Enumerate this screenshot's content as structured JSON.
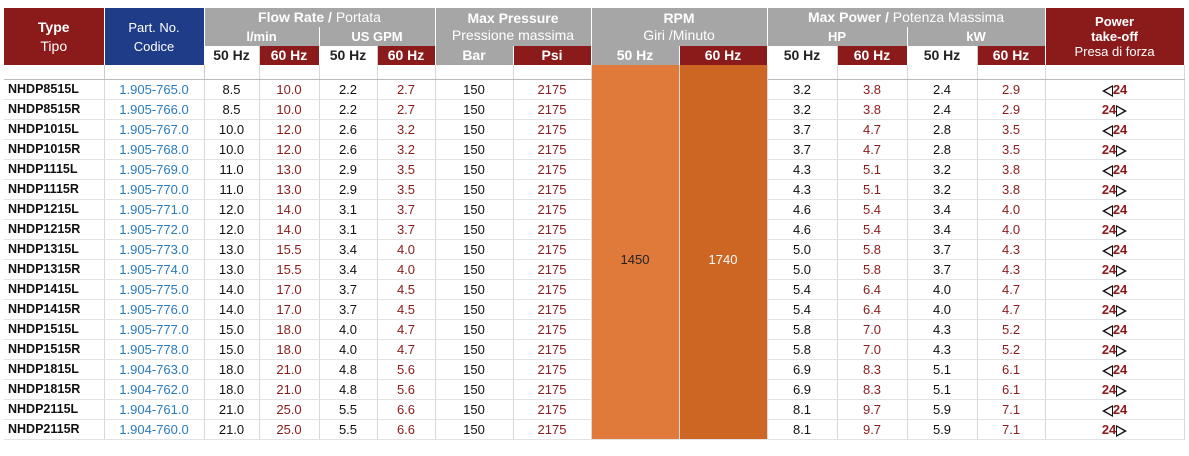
{
  "header": {
    "type": {
      "title": "Type",
      "sub": "Tipo"
    },
    "part": {
      "title": "Part. No.",
      "sub": "Codice"
    },
    "flow": {
      "title": "Flow Rate /",
      "sub": "Portata",
      "lmin": "l/min",
      "usgpm": "US GPM"
    },
    "pressure": {
      "title": "Max Pressure",
      "sub": "Pressione massima",
      "bar": "Bar",
      "psi": "Psi"
    },
    "rpm": {
      "title": "RPM",
      "sub": "Giri /Minuto"
    },
    "power": {
      "title": "Max Power /",
      "sub": "Potenza Massima",
      "hp": "HP",
      "kw": "kW"
    },
    "pto": {
      "title1": "Power",
      "title2": "take-off",
      "sub": "Presa di forza"
    },
    "hz50": "50 Hz",
    "hz60": "60 Hz"
  },
  "rpm_values": {
    "hz50": "1450",
    "hz60": "1740"
  },
  "rows": [
    {
      "type": "NHDP8515L",
      "part": "1.905-765.0",
      "l50": "8.5",
      "l60": "10.0",
      "g50": "2.2",
      "g60": "2.7",
      "bar": "150",
      "psi": "2175",
      "hp50": "3.2",
      "hp60": "3.8",
      "kw50": "2.4",
      "kw60": "2.9",
      "pto": "24",
      "dir": "L"
    },
    {
      "type": "NHDP8515R",
      "part": "1.905-766.0",
      "l50": "8.5",
      "l60": "10.0",
      "g50": "2.2",
      "g60": "2.7",
      "bar": "150",
      "psi": "2175",
      "hp50": "3.2",
      "hp60": "3.8",
      "kw50": "2.4",
      "kw60": "2.9",
      "pto": "24",
      "dir": "R"
    },
    {
      "type": "NHDP1015L",
      "part": "1.905-767.0",
      "l50": "10.0",
      "l60": "12.0",
      "g50": "2.6",
      "g60": "3.2",
      "bar": "150",
      "psi": "2175",
      "hp50": "3.7",
      "hp60": "4.7",
      "kw50": "2.8",
      "kw60": "3.5",
      "pto": "24",
      "dir": "L"
    },
    {
      "type": "NHDP1015R",
      "part": "1.905-768.0",
      "l50": "10.0",
      "l60": "12.0",
      "g50": "2.6",
      "g60": "3.2",
      "bar": "150",
      "psi": "2175",
      "hp50": "3.7",
      "hp60": "4.7",
      "kw50": "2.8",
      "kw60": "3.5",
      "pto": "24",
      "dir": "R"
    },
    {
      "type": "NHDP1115L",
      "part": "1.905-769.0",
      "l50": "11.0",
      "l60": "13.0",
      "g50": "2.9",
      "g60": "3.5",
      "bar": "150",
      "psi": "2175",
      "hp50": "4.3",
      "hp60": "5.1",
      "kw50": "3.2",
      "kw60": "3.8",
      "pto": "24",
      "dir": "L"
    },
    {
      "type": "NHDP1115R",
      "part": "1.905-770.0",
      "l50": "11.0",
      "l60": "13.0",
      "g50": "2.9",
      "g60": "3.5",
      "bar": "150",
      "psi": "2175",
      "hp50": "4.3",
      "hp60": "5.1",
      "kw50": "3.2",
      "kw60": "3.8",
      "pto": "24",
      "dir": "R"
    },
    {
      "type": "NHDP1215L",
      "part": "1.905-771.0",
      "l50": "12.0",
      "l60": "14.0",
      "g50": "3.1",
      "g60": "3.7",
      "bar": "150",
      "psi": "2175",
      "hp50": "4.6",
      "hp60": "5.4",
      "kw50": "3.4",
      "kw60": "4.0",
      "pto": "24",
      "dir": "L"
    },
    {
      "type": "NHDP1215R",
      "part": "1.905-772.0",
      "l50": "12.0",
      "l60": "14.0",
      "g50": "3.1",
      "g60": "3.7",
      "bar": "150",
      "psi": "2175",
      "hp50": "4.6",
      "hp60": "5.4",
      "kw50": "3.4",
      "kw60": "4.0",
      "pto": "24",
      "dir": "R"
    },
    {
      "type": "NHDP1315L",
      "part": "1.905-773.0",
      "l50": "13.0",
      "l60": "15.5",
      "g50": "3.4",
      "g60": "4.0",
      "bar": "150",
      "psi": "2175",
      "hp50": "5.0",
      "hp60": "5.8",
      "kw50": "3.7",
      "kw60": "4.3",
      "pto": "24",
      "dir": "L"
    },
    {
      "type": "NHDP1315R",
      "part": "1.905-774.0",
      "l50": "13.0",
      "l60": "15.5",
      "g50": "3.4",
      "g60": "4.0",
      "bar": "150",
      "psi": "2175",
      "hp50": "5.0",
      "hp60": "5.8",
      "kw50": "3.7",
      "kw60": "4.3",
      "pto": "24",
      "dir": "R"
    },
    {
      "type": "NHDP1415L",
      "part": "1.905-775.0",
      "l50": "14.0",
      "l60": "17.0",
      "g50": "3.7",
      "g60": "4.5",
      "bar": "150",
      "psi": "2175",
      "hp50": "5.4",
      "hp60": "6.4",
      "kw50": "4.0",
      "kw60": "4.7",
      "pto": "24",
      "dir": "L"
    },
    {
      "type": "NHDP1415R",
      "part": "1.905-776.0",
      "l50": "14.0",
      "l60": "17.0",
      "g50": "3.7",
      "g60": "4.5",
      "bar": "150",
      "psi": "2175",
      "hp50": "5.4",
      "hp60": "6.4",
      "kw50": "4.0",
      "kw60": "4.7",
      "pto": "24",
      "dir": "R"
    },
    {
      "type": "NHDP1515L",
      "part": "1.905-777.0",
      "l50": "15.0",
      "l60": "18.0",
      "g50": "4.0",
      "g60": "4.7",
      "bar": "150",
      "psi": "2175",
      "hp50": "5.8",
      "hp60": "7.0",
      "kw50": "4.3",
      "kw60": "5.2",
      "pto": "24",
      "dir": "L"
    },
    {
      "type": "NHDP1515R",
      "part": "1.905-778.0",
      "l50": "15.0",
      "l60": "18.0",
      "g50": "4.0",
      "g60": "4.7",
      "bar": "150",
      "psi": "2175",
      "hp50": "5.8",
      "hp60": "7.0",
      "kw50": "4.3",
      "kw60": "5.2",
      "pto": "24",
      "dir": "R"
    },
    {
      "type": "NHDP1815L",
      "part": "1.904-763.0",
      "l50": "18.0",
      "l60": "21.0",
      "g50": "4.8",
      "g60": "5.6",
      "bar": "150",
      "psi": "2175",
      "hp50": "6.9",
      "hp60": "8.3",
      "kw50": "5.1",
      "kw60": "6.1",
      "pto": "24",
      "dir": "L"
    },
    {
      "type": "NHDP1815R",
      "part": "1.904-762.0",
      "l50": "18.0",
      "l60": "21.0",
      "g50": "4.8",
      "g60": "5.6",
      "bar": "150",
      "psi": "2175",
      "hp50": "6.9",
      "hp60": "8.3",
      "kw50": "5.1",
      "kw60": "6.1",
      "pto": "24",
      "dir": "R"
    },
    {
      "type": "NHDP2115L",
      "part": "1.904-761.0",
      "l50": "21.0",
      "l60": "25.0",
      "g50": "5.5",
      "g60": "6.6",
      "bar": "150",
      "psi": "2175",
      "hp50": "8.1",
      "hp60": "9.7",
      "kw50": "5.9",
      "kw60": "7.1",
      "pto": "24",
      "dir": "L"
    },
    {
      "type": "NHDP2115R",
      "part": "1.904-760.0",
      "l50": "21.0",
      "l60": "25.0",
      "g50": "5.5",
      "g60": "6.6",
      "bar": "150",
      "psi": "2175",
      "hp50": "8.1",
      "hp60": "9.7",
      "kw50": "5.9",
      "kw60": "7.1",
      "pto": "24",
      "dir": "R"
    }
  ]
}
